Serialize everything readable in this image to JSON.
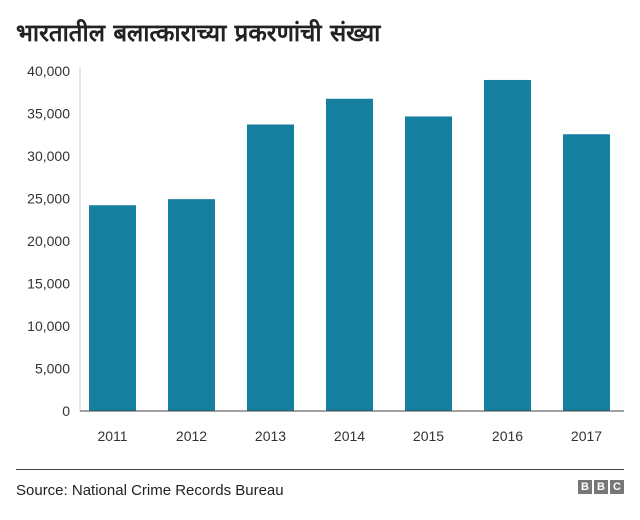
{
  "chart_data": {
    "type": "bar",
    "title": "भारतातील बलात्काराच्या प्रकरणांची संख्या",
    "categories": [
      "2011",
      "2012",
      "2013",
      "2014",
      "2015",
      "2016",
      "2017"
    ],
    "values": [
      24206,
      24923,
      33707,
      36735,
      34651,
      38947,
      32559
    ],
    "ylim": [
      0,
      40000
    ],
    "yticks": [
      0,
      5000,
      10000,
      15000,
      20000,
      25000,
      30000,
      35000,
      40000
    ],
    "ytick_labels": [
      "0",
      "5,000",
      "10,000",
      "15,000",
      "20,000",
      "25,000",
      "30,000",
      "35,000",
      "40,000"
    ],
    "grid": false,
    "bar_color": "#157fa0",
    "xlabel": "",
    "ylabel": ""
  },
  "footer": {
    "source": "Source: National Crime Records Bureau",
    "logo": "BBC",
    "logo_letters": [
      "B",
      "B",
      "C"
    ]
  }
}
